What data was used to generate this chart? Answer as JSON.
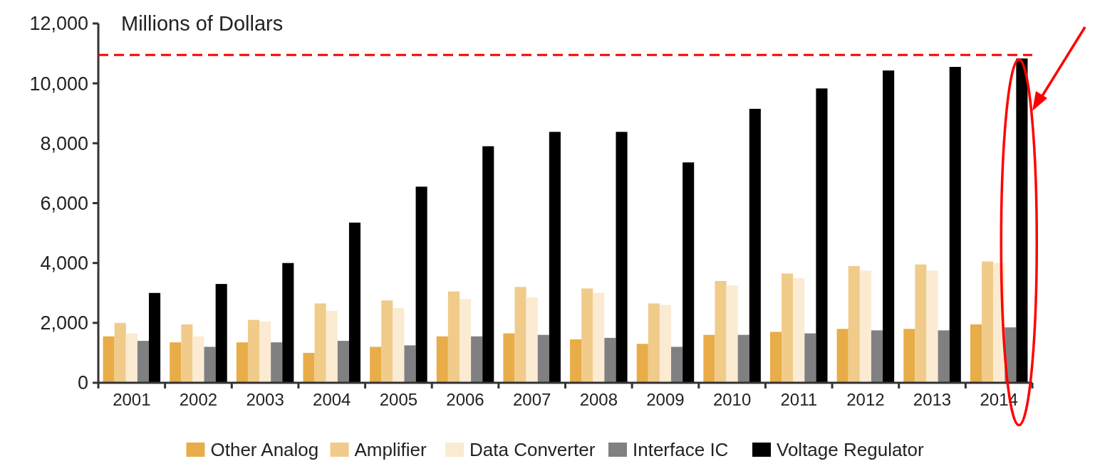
{
  "chart_data": {
    "type": "bar",
    "ylabel": "Millions of Dollars",
    "categories": [
      "2001",
      "2002",
      "2003",
      "2004",
      "2005",
      "2006",
      "2007",
      "2008",
      "2009",
      "2010",
      "2011",
      "2012",
      "2013",
      "2014"
    ],
    "series": [
      {
        "name": "Other Analog",
        "color": "#e8ad48",
        "values": [
          1550,
          1350,
          1350,
          1000,
          1200,
          1550,
          1650,
          1450,
          1300,
          1600,
          1700,
          1800,
          1800,
          1950
        ]
      },
      {
        "name": "Amplifier",
        "color": "#f0cb8a",
        "values": [
          2000,
          1950,
          2100,
          2650,
          2750,
          3050,
          3200,
          3150,
          2650,
          3400,
          3650,
          3900,
          3950,
          4050
        ]
      },
      {
        "name": "Data Converter",
        "color": "#faebd2",
        "values": [
          1650,
          1550,
          2050,
          2400,
          2500,
          2800,
          2850,
          3000,
          2600,
          3250,
          3500,
          3750,
          3750,
          4000
        ]
      },
      {
        "name": "Interface IC",
        "color": "#808083",
        "values": [
          1400,
          1200,
          1350,
          1400,
          1250,
          1550,
          1600,
          1500,
          1200,
          1600,
          1650,
          1750,
          1750,
          1850
        ]
      },
      {
        "name": "Voltage Regulator",
        "color": "#000000",
        "values": [
          3000,
          3300,
          4000,
          5350,
          6550,
          7900,
          8380,
          8380,
          7360,
          9150,
          9830,
          10430,
          10550,
          10830
        ]
      }
    ],
    "ylim": [
      0,
      12000
    ],
    "yticks": [
      {
        "value": 0,
        "label": "0"
      },
      {
        "value": 2000,
        "label": "2,000"
      },
      {
        "value": 4000,
        "label": "4,000"
      },
      {
        "value": 6000,
        "label": "6,000"
      },
      {
        "value": 8000,
        "label": "8,000"
      },
      {
        "value": 10000,
        "label": "10,000"
      },
      {
        "value": 12000,
        "label": "12,000"
      }
    ],
    "grid": false,
    "legend": "bottom",
    "ref_lines": [
      {
        "axis": "y",
        "value": 10950,
        "color": "#ff0000",
        "line_style": "dashed"
      }
    ]
  }
}
